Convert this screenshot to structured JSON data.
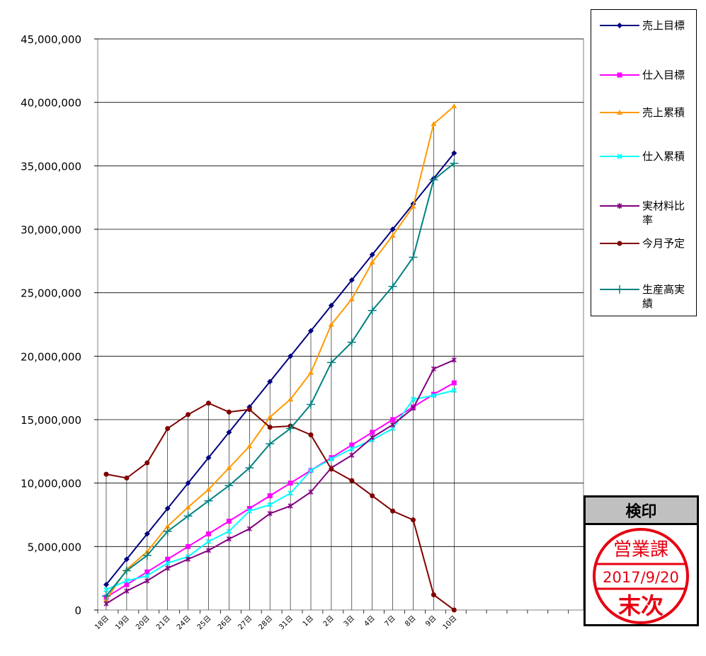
{
  "chart_data": {
    "type": "line",
    "categories": [
      "18日",
      "19日",
      "20日",
      "21日",
      "24日",
      "25日",
      "26日",
      "27日",
      "28日",
      "31日",
      "1日",
      "2日",
      "3日",
      "4日",
      "7日",
      "8日",
      "9日",
      "10日"
    ],
    "ylim": [
      0,
      45000000
    ],
    "yticks": [
      "0",
      "5,000,000",
      "10,000,000",
      "15,000,000",
      "20,000,000",
      "25,000,000",
      "30,000,000",
      "35,000,000",
      "40,000,000",
      "45,000,000"
    ],
    "grid": true,
    "legend_position": "right",
    "series": [
      {
        "name": "売上目標",
        "color": "#000080",
        "marker": "diamond",
        "values": [
          2000000,
          4000000,
          6000000,
          8000000,
          10000000,
          12000000,
          14000000,
          16000000,
          18000000,
          20000000,
          22000000,
          24000000,
          26000000,
          28000000,
          30000000,
          32000000,
          34000000,
          36000000
        ]
      },
      {
        "name": "仕入目標",
        "color": "#ff00ff",
        "marker": "square",
        "values": [
          1000000,
          2000000,
          3000000,
          4000000,
          5000000,
          6000000,
          7000000,
          8000000,
          9000000,
          10000000,
          11000000,
          12000000,
          13000000,
          14000000,
          15000000,
          16000000,
          17000000,
          17900000
        ]
      },
      {
        "name": "売上累積",
        "color": "#ff9900",
        "marker": "triangle",
        "values": [
          800000,
          3200000,
          4600000,
          6600000,
          8100000,
          9500000,
          11200000,
          12900000,
          15200000,
          16600000,
          18700000,
          22500000,
          24500000,
          27400000,
          29500000,
          31800000,
          38300000,
          39700000
        ]
      },
      {
        "name": "仕入累積",
        "color": "#00ffff",
        "marker": "x",
        "values": [
          1600000,
          2300000,
          2700000,
          3700000,
          4200000,
          5400000,
          6200000,
          7800000,
          8300000,
          9200000,
          11000000,
          11900000,
          12700000,
          13400000,
          14300000,
          16600000,
          16900000,
          17300000
        ]
      },
      {
        "name": "実材料比率",
        "color": "#800080",
        "marker": "star",
        "values": [
          500000,
          1500000,
          2300000,
          3300000,
          4000000,
          4700000,
          5600000,
          6400000,
          7600000,
          8200000,
          9300000,
          11200000,
          12200000,
          13600000,
          14600000,
          15900000,
          19000000,
          19700000
        ]
      },
      {
        "name": "今月予定",
        "color": "#800000",
        "marker": "circle",
        "values": [
          10700000,
          10400000,
          11600000,
          14300000,
          15400000,
          16300000,
          15600000,
          15800000,
          14400000,
          14500000,
          13800000,
          11100000,
          10200000,
          9000000,
          7800000,
          7100000,
          1200000,
          0
        ]
      },
      {
        "name": "生産高実績",
        "color": "#008080",
        "marker": "plus",
        "values": [
          1100000,
          3100000,
          4300000,
          6200000,
          7400000,
          8600000,
          9800000,
          11200000,
          13100000,
          14300000,
          16200000,
          19500000,
          21100000,
          23600000,
          25500000,
          27800000,
          33900000,
          35200000
        ]
      }
    ]
  },
  "stamp": {
    "title": "検印",
    "department": "営業課",
    "date": "2017/9/20",
    "name": "末次",
    "color": "#e60012"
  }
}
